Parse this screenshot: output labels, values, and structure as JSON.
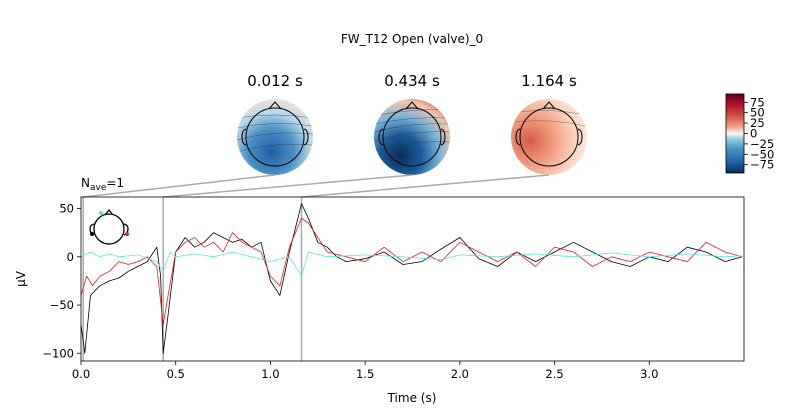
{
  "chart_data": {
    "type": "line",
    "title": "FW_T12 Open (valve)_0",
    "nave_label": "N",
    "nave_sub": "ave",
    "nave_value": "=1",
    "xlabel": "Time (s)",
    "ylabel": "µV",
    "xlim": [
      0.0,
      3.5
    ],
    "ylim": [
      -108,
      62
    ],
    "xticks": [
      0.0,
      0.5,
      1.0,
      1.5,
      2.0,
      2.5,
      3.0
    ],
    "xtick_labels": [
      "0.0",
      "0.5",
      "1.0",
      "1.5",
      "2.0",
      "2.5",
      "3.0"
    ],
    "yticks": [
      50,
      0,
      -50,
      -100
    ],
    "ytick_labels": [
      "50",
      "0",
      "−50",
      "−100"
    ],
    "grid": false,
    "topomaps": [
      {
        "time": 0.012,
        "label": "0.012 s"
      },
      {
        "time": 0.434,
        "label": "0.434 s"
      },
      {
        "time": 1.164,
        "label": "1.164 s"
      }
    ],
    "colorbar": {
      "range": [
        -95,
        95
      ],
      "ticks": [
        75,
        50,
        25,
        0,
        -25,
        -50,
        -75
      ],
      "tick_labels": [
        "75",
        "50",
        "25",
        "0",
        "−25",
        "−50",
        "−75"
      ],
      "colormap": "RdBu_r"
    },
    "series": [
      {
        "color": "#000000",
        "points": [
          [
            0.0,
            -70
          ],
          [
            0.02,
            -100
          ],
          [
            0.05,
            -40
          ],
          [
            0.1,
            -30
          ],
          [
            0.15,
            -25
          ],
          [
            0.2,
            -22
          ],
          [
            0.25,
            -15
          ],
          [
            0.3,
            -10
          ],
          [
            0.35,
            -5
          ],
          [
            0.4,
            10
          ],
          [
            0.42,
            -20
          ],
          [
            0.434,
            -100
          ],
          [
            0.46,
            -60
          ],
          [
            0.5,
            5
          ],
          [
            0.55,
            20
          ],
          [
            0.6,
            10
          ],
          [
            0.65,
            15
          ],
          [
            0.7,
            25
          ],
          [
            0.75,
            20
          ],
          [
            0.8,
            15
          ],
          [
            0.85,
            18
          ],
          [
            0.9,
            10
          ],
          [
            0.95,
            15
          ],
          [
            1.0,
            -25
          ],
          [
            1.05,
            -40
          ],
          [
            1.1,
            5
          ],
          [
            1.164,
            55
          ],
          [
            1.2,
            40
          ],
          [
            1.25,
            15
          ],
          [
            1.3,
            10
          ],
          [
            1.35,
            0
          ],
          [
            1.4,
            -5
          ],
          [
            1.5,
            -2
          ],
          [
            1.6,
            5
          ],
          [
            1.7,
            -8
          ],
          [
            1.8,
            -5
          ],
          [
            1.9,
            8
          ],
          [
            2.0,
            20
          ],
          [
            2.1,
            -2
          ],
          [
            2.2,
            -10
          ],
          [
            2.3,
            5
          ],
          [
            2.4,
            -5
          ],
          [
            2.5,
            5
          ],
          [
            2.6,
            15
          ],
          [
            2.7,
            5
          ],
          [
            2.8,
            -5
          ],
          [
            2.9,
            -10
          ],
          [
            3.0,
            0
          ],
          [
            3.1,
            -5
          ],
          [
            3.2,
            10
          ],
          [
            3.3,
            5
          ],
          [
            3.4,
            -5
          ],
          [
            3.49,
            0
          ]
        ]
      },
      {
        "color": "#e8201a",
        "points": [
          [
            0.0,
            -40
          ],
          [
            0.03,
            -20
          ],
          [
            0.06,
            -30
          ],
          [
            0.1,
            -20
          ],
          [
            0.15,
            -15
          ],
          [
            0.2,
            -5
          ],
          [
            0.25,
            -8
          ],
          [
            0.3,
            -5
          ],
          [
            0.35,
            0
          ],
          [
            0.4,
            -10
          ],
          [
            0.434,
            -70
          ],
          [
            0.46,
            -40
          ],
          [
            0.5,
            5
          ],
          [
            0.55,
            15
          ],
          [
            0.6,
            20
          ],
          [
            0.65,
            10
          ],
          [
            0.7,
            15
          ],
          [
            0.75,
            5
          ],
          [
            0.8,
            25
          ],
          [
            0.85,
            15
          ],
          [
            0.9,
            10
          ],
          [
            0.95,
            5
          ],
          [
            1.0,
            -20
          ],
          [
            1.05,
            -30
          ],
          [
            1.1,
            10
          ],
          [
            1.164,
            40
          ],
          [
            1.2,
            35
          ],
          [
            1.25,
            20
          ],
          [
            1.3,
            5
          ],
          [
            1.4,
            0
          ],
          [
            1.5,
            -5
          ],
          [
            1.6,
            10
          ],
          [
            1.7,
            -5
          ],
          [
            1.8,
            5
          ],
          [
            1.9,
            -5
          ],
          [
            2.0,
            15
          ],
          [
            2.1,
            5
          ],
          [
            2.2,
            -5
          ],
          [
            2.3,
            5
          ],
          [
            2.4,
            -10
          ],
          [
            2.5,
            10
          ],
          [
            2.6,
            5
          ],
          [
            2.7,
            -10
          ],
          [
            2.8,
            0
          ],
          [
            2.9,
            -5
          ],
          [
            3.0,
            5
          ],
          [
            3.1,
            0
          ],
          [
            3.2,
            -5
          ],
          [
            3.3,
            15
          ],
          [
            3.4,
            5
          ],
          [
            3.49,
            0
          ]
        ]
      },
      {
        "color": "#5fe3ee",
        "points": [
          [
            0.0,
            0
          ],
          [
            0.05,
            5
          ],
          [
            0.1,
            0
          ],
          [
            0.15,
            3
          ],
          [
            0.2,
            0
          ],
          [
            0.3,
            2
          ],
          [
            0.4,
            -5
          ],
          [
            0.434,
            -15
          ],
          [
            0.47,
            5
          ],
          [
            0.5,
            0
          ],
          [
            0.6,
            3
          ],
          [
            0.7,
            0
          ],
          [
            0.8,
            5
          ],
          [
            0.9,
            0
          ],
          [
            1.0,
            -5
          ],
          [
            1.1,
            0
          ],
          [
            1.164,
            -20
          ],
          [
            1.2,
            5
          ],
          [
            1.3,
            0
          ],
          [
            1.5,
            2
          ],
          [
            1.7,
            0
          ],
          [
            1.9,
            -3
          ],
          [
            2.0,
            2
          ],
          [
            2.2,
            0
          ],
          [
            2.4,
            3
          ],
          [
            2.6,
            0
          ],
          [
            2.8,
            4
          ],
          [
            3.0,
            0
          ],
          [
            3.2,
            3
          ],
          [
            3.4,
            0
          ],
          [
            3.49,
            1
          ]
        ]
      }
    ]
  }
}
